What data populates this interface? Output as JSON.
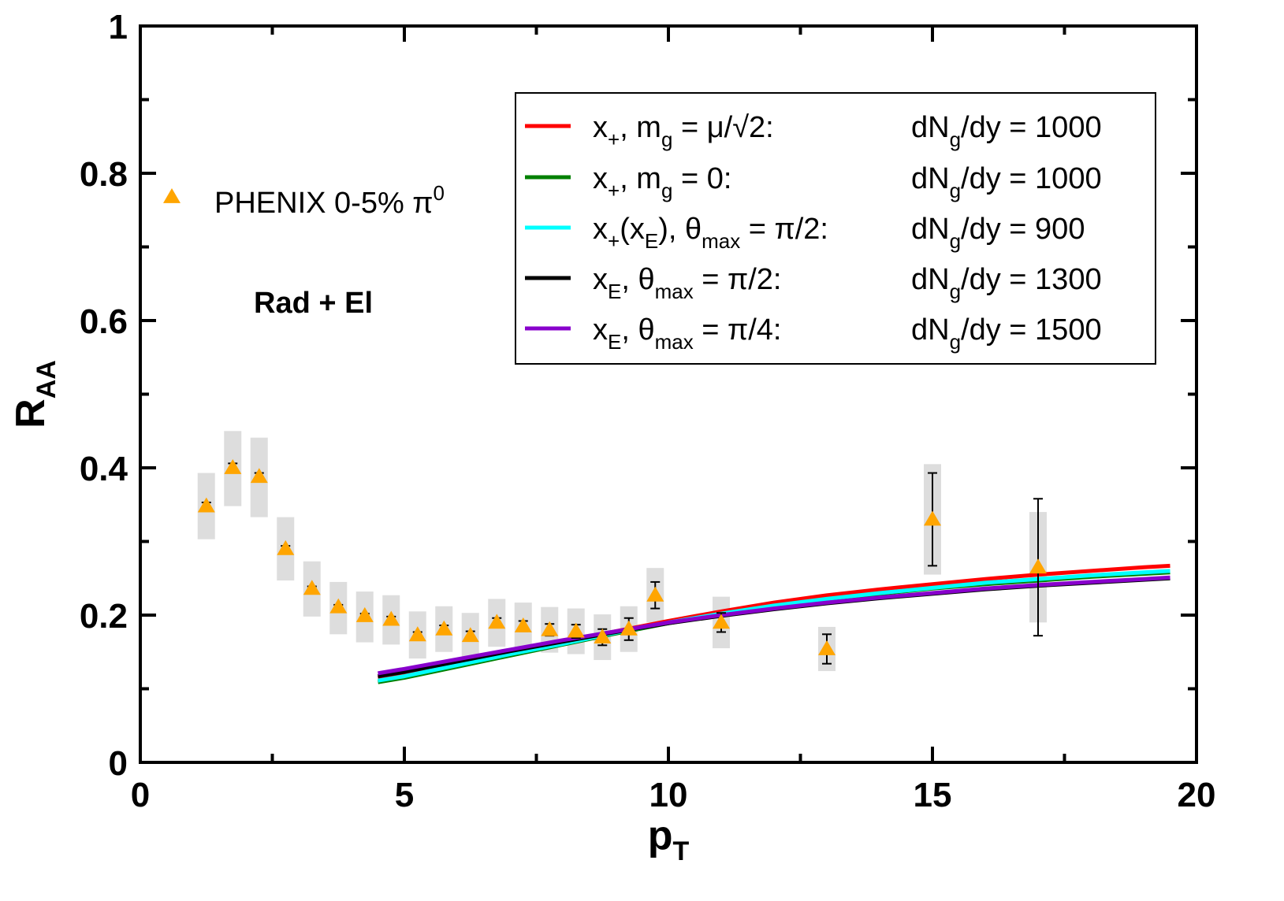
{
  "chart_data": {
    "type": "scatter",
    "xlabel": "p",
    "xlabel_sub": "T",
    "ylabel": "R",
    "ylabel_sub": "AA",
    "xlim": [
      0,
      20
    ],
    "ylim": [
      0,
      1
    ],
    "x_major_ticks": [
      0,
      5,
      10,
      15,
      20
    ],
    "x_tick_labels": [
      "0",
      "5",
      "10",
      "15",
      "20"
    ],
    "y_major_ticks": [
      0,
      0.2,
      0.4,
      0.6,
      0.8,
      1
    ],
    "y_tick_labels": [
      "0",
      "0.2",
      "0.4",
      "0.6",
      "0.8",
      "1"
    ],
    "annotation": "Rad + El",
    "data_series": {
      "name": "PHENIX 0-5% π",
      "name_sup": "0",
      "color": "#ffa500",
      "points": [
        {
          "x": 1.25,
          "y": 0.348,
          "stat_lo": 0.343,
          "stat_hi": 0.353,
          "sys_lo": 0.303,
          "sys_hi": 0.393
        },
        {
          "x": 1.75,
          "y": 0.4,
          "stat_lo": 0.394,
          "stat_hi": 0.406,
          "sys_lo": 0.348,
          "sys_hi": 0.45
        },
        {
          "x": 2.25,
          "y": 0.388,
          "stat_lo": 0.383,
          "stat_hi": 0.393,
          "sys_lo": 0.333,
          "sys_hi": 0.441
        },
        {
          "x": 2.75,
          "y": 0.29,
          "stat_lo": 0.286,
          "stat_hi": 0.294,
          "sys_lo": 0.247,
          "sys_hi": 0.333
        },
        {
          "x": 3.25,
          "y": 0.236,
          "stat_lo": 0.233,
          "stat_hi": 0.239,
          "sys_lo": 0.198,
          "sys_hi": 0.273
        },
        {
          "x": 3.75,
          "y": 0.211,
          "stat_lo": 0.208,
          "stat_hi": 0.214,
          "sys_lo": 0.174,
          "sys_hi": 0.245
        },
        {
          "x": 4.25,
          "y": 0.199,
          "stat_lo": 0.196,
          "stat_hi": 0.202,
          "sys_lo": 0.163,
          "sys_hi": 0.232
        },
        {
          "x": 4.75,
          "y": 0.194,
          "stat_lo": 0.19,
          "stat_hi": 0.198,
          "sys_lo": 0.16,
          "sys_hi": 0.227
        },
        {
          "x": 5.25,
          "y": 0.173,
          "stat_lo": 0.169,
          "stat_hi": 0.177,
          "sys_lo": 0.141,
          "sys_hi": 0.205
        },
        {
          "x": 5.75,
          "y": 0.181,
          "stat_lo": 0.176,
          "stat_hi": 0.186,
          "sys_lo": 0.15,
          "sys_hi": 0.212
        },
        {
          "x": 6.25,
          "y": 0.172,
          "stat_lo": 0.166,
          "stat_hi": 0.178,
          "sys_lo": 0.141,
          "sys_hi": 0.203
        },
        {
          "x": 6.75,
          "y": 0.19,
          "stat_lo": 0.184,
          "stat_hi": 0.196,
          "sys_lo": 0.157,
          "sys_hi": 0.222
        },
        {
          "x": 7.25,
          "y": 0.185,
          "stat_lo": 0.178,
          "stat_hi": 0.192,
          "sys_lo": 0.153,
          "sys_hi": 0.217
        },
        {
          "x": 7.75,
          "y": 0.18,
          "stat_lo": 0.172,
          "stat_hi": 0.188,
          "sys_lo": 0.149,
          "sys_hi": 0.211
        },
        {
          "x": 8.25,
          "y": 0.178,
          "stat_lo": 0.169,
          "stat_hi": 0.187,
          "sys_lo": 0.147,
          "sys_hi": 0.209
        },
        {
          "x": 8.75,
          "y": 0.17,
          "stat_lo": 0.159,
          "stat_hi": 0.181,
          "sys_lo": 0.139,
          "sys_hi": 0.201
        },
        {
          "x": 9.25,
          "y": 0.181,
          "stat_lo": 0.166,
          "stat_hi": 0.196,
          "sys_lo": 0.15,
          "sys_hi": 0.212
        },
        {
          "x": 9.75,
          "y": 0.227,
          "stat_lo": 0.209,
          "stat_hi": 0.245,
          "sys_lo": 0.19,
          "sys_hi": 0.264
        },
        {
          "x": 11.0,
          "y": 0.19,
          "stat_lo": 0.177,
          "stat_hi": 0.203,
          "sys_lo": 0.155,
          "sys_hi": 0.225
        },
        {
          "x": 13.0,
          "y": 0.154,
          "stat_lo": 0.134,
          "stat_hi": 0.174,
          "sys_lo": 0.124,
          "sys_hi": 0.184
        },
        {
          "x": 15.0,
          "y": 0.33,
          "stat_lo": 0.267,
          "stat_hi": 0.393,
          "sys_lo": 0.255,
          "sys_hi": 0.405
        },
        {
          "x": 17.0,
          "y": 0.265,
          "stat_lo": 0.172,
          "stat_hi": 0.358,
          "sys_lo": 0.19,
          "sys_hi": 0.34
        }
      ]
    },
    "series": [
      {
        "name": "x+, mg = μ/√2",
        "color": "#ff0000",
        "label": {
          "main": "x",
          "sub1": "+",
          "mid": ", m",
          "sub2": "g",
          "tail": " = μ/√2:"
        },
        "dN": "dN",
        "dN_sub": "g",
        "dN_tail": "/dy = 1000",
        "x": [
          4.5,
          5,
          6,
          7,
          8,
          9,
          10,
          11,
          12,
          13,
          14,
          15,
          16,
          17,
          18,
          19,
          19.5
        ],
        "values": [
          0.115,
          0.121,
          0.135,
          0.149,
          0.163,
          0.178,
          0.192,
          0.205,
          0.217,
          0.227,
          0.235,
          0.242,
          0.249,
          0.255,
          0.26,
          0.265,
          0.267
        ]
      },
      {
        "name": "x+, mg = 0",
        "color": "#008000",
        "label": {
          "main": "x",
          "sub1": "+",
          "mid": ", m",
          "sub2": "g",
          "tail": " = 0:"
        },
        "dN": "dN",
        "dN_sub": "g",
        "dN_tail": "/dy = 1000",
        "x": [
          4.5,
          5,
          6,
          7,
          8,
          9,
          10,
          11,
          12,
          13,
          14,
          15,
          16,
          17,
          18,
          19,
          19.5
        ],
        "values": [
          0.109,
          0.115,
          0.13,
          0.145,
          0.16,
          0.175,
          0.189,
          0.201,
          0.212,
          0.221,
          0.229,
          0.236,
          0.242,
          0.247,
          0.252,
          0.256,
          0.258
        ]
      },
      {
        "name": "x+(xE), θmax = π/2",
        "color": "#00ffff",
        "label": {
          "main": "x",
          "sub1": "+",
          "mid": "(x",
          "sub2": "E",
          "mid2": "), θ",
          "sub3": "max",
          "tail": " = π/2:"
        },
        "dN": "dN",
        "dN_sub": "g",
        "dN_tail": "/dy = 900",
        "x": [
          4.5,
          5,
          6,
          7,
          8,
          9,
          10,
          11,
          12,
          13,
          14,
          15,
          16,
          17,
          18,
          19,
          19.5
        ],
        "values": [
          0.111,
          0.117,
          0.132,
          0.147,
          0.161,
          0.176,
          0.19,
          0.202,
          0.213,
          0.222,
          0.23,
          0.237,
          0.244,
          0.249,
          0.254,
          0.258,
          0.26
        ]
      },
      {
        "name": "xE, θmax = π/2",
        "color": "#000000",
        "label": {
          "main": "x",
          "sub1": "E",
          "mid": ", θ",
          "sub2": "max",
          "tail": " = π/2:"
        },
        "dN": "dN",
        "dN_sub": "g",
        "dN_tail": "/dy = 1300",
        "x": [
          4.5,
          5,
          6,
          7,
          8,
          9,
          10,
          11,
          12,
          13,
          14,
          15,
          16,
          17,
          18,
          19,
          19.5
        ],
        "values": [
          0.117,
          0.123,
          0.137,
          0.151,
          0.164,
          0.177,
          0.189,
          0.199,
          0.208,
          0.216,
          0.223,
          0.229,
          0.235,
          0.24,
          0.244,
          0.248,
          0.25
        ]
      },
      {
        "name": "xE, θmax = π/4",
        "color": "#8800cc",
        "label": {
          "main": "x",
          "sub1": "E",
          "mid": ", θ",
          "sub2": "max",
          "tail": " = π/4:"
        },
        "dN": "dN",
        "dN_sub": "g",
        "dN_tail": "/dy = 1500",
        "x": [
          4.5,
          5,
          6,
          7,
          8,
          9,
          10,
          11,
          12,
          13,
          14,
          15,
          16,
          17,
          18,
          19,
          19.5
        ],
        "values": [
          0.121,
          0.127,
          0.14,
          0.153,
          0.166,
          0.178,
          0.19,
          0.2,
          0.209,
          0.217,
          0.224,
          0.23,
          0.236,
          0.241,
          0.245,
          0.249,
          0.251
        ]
      }
    ]
  }
}
